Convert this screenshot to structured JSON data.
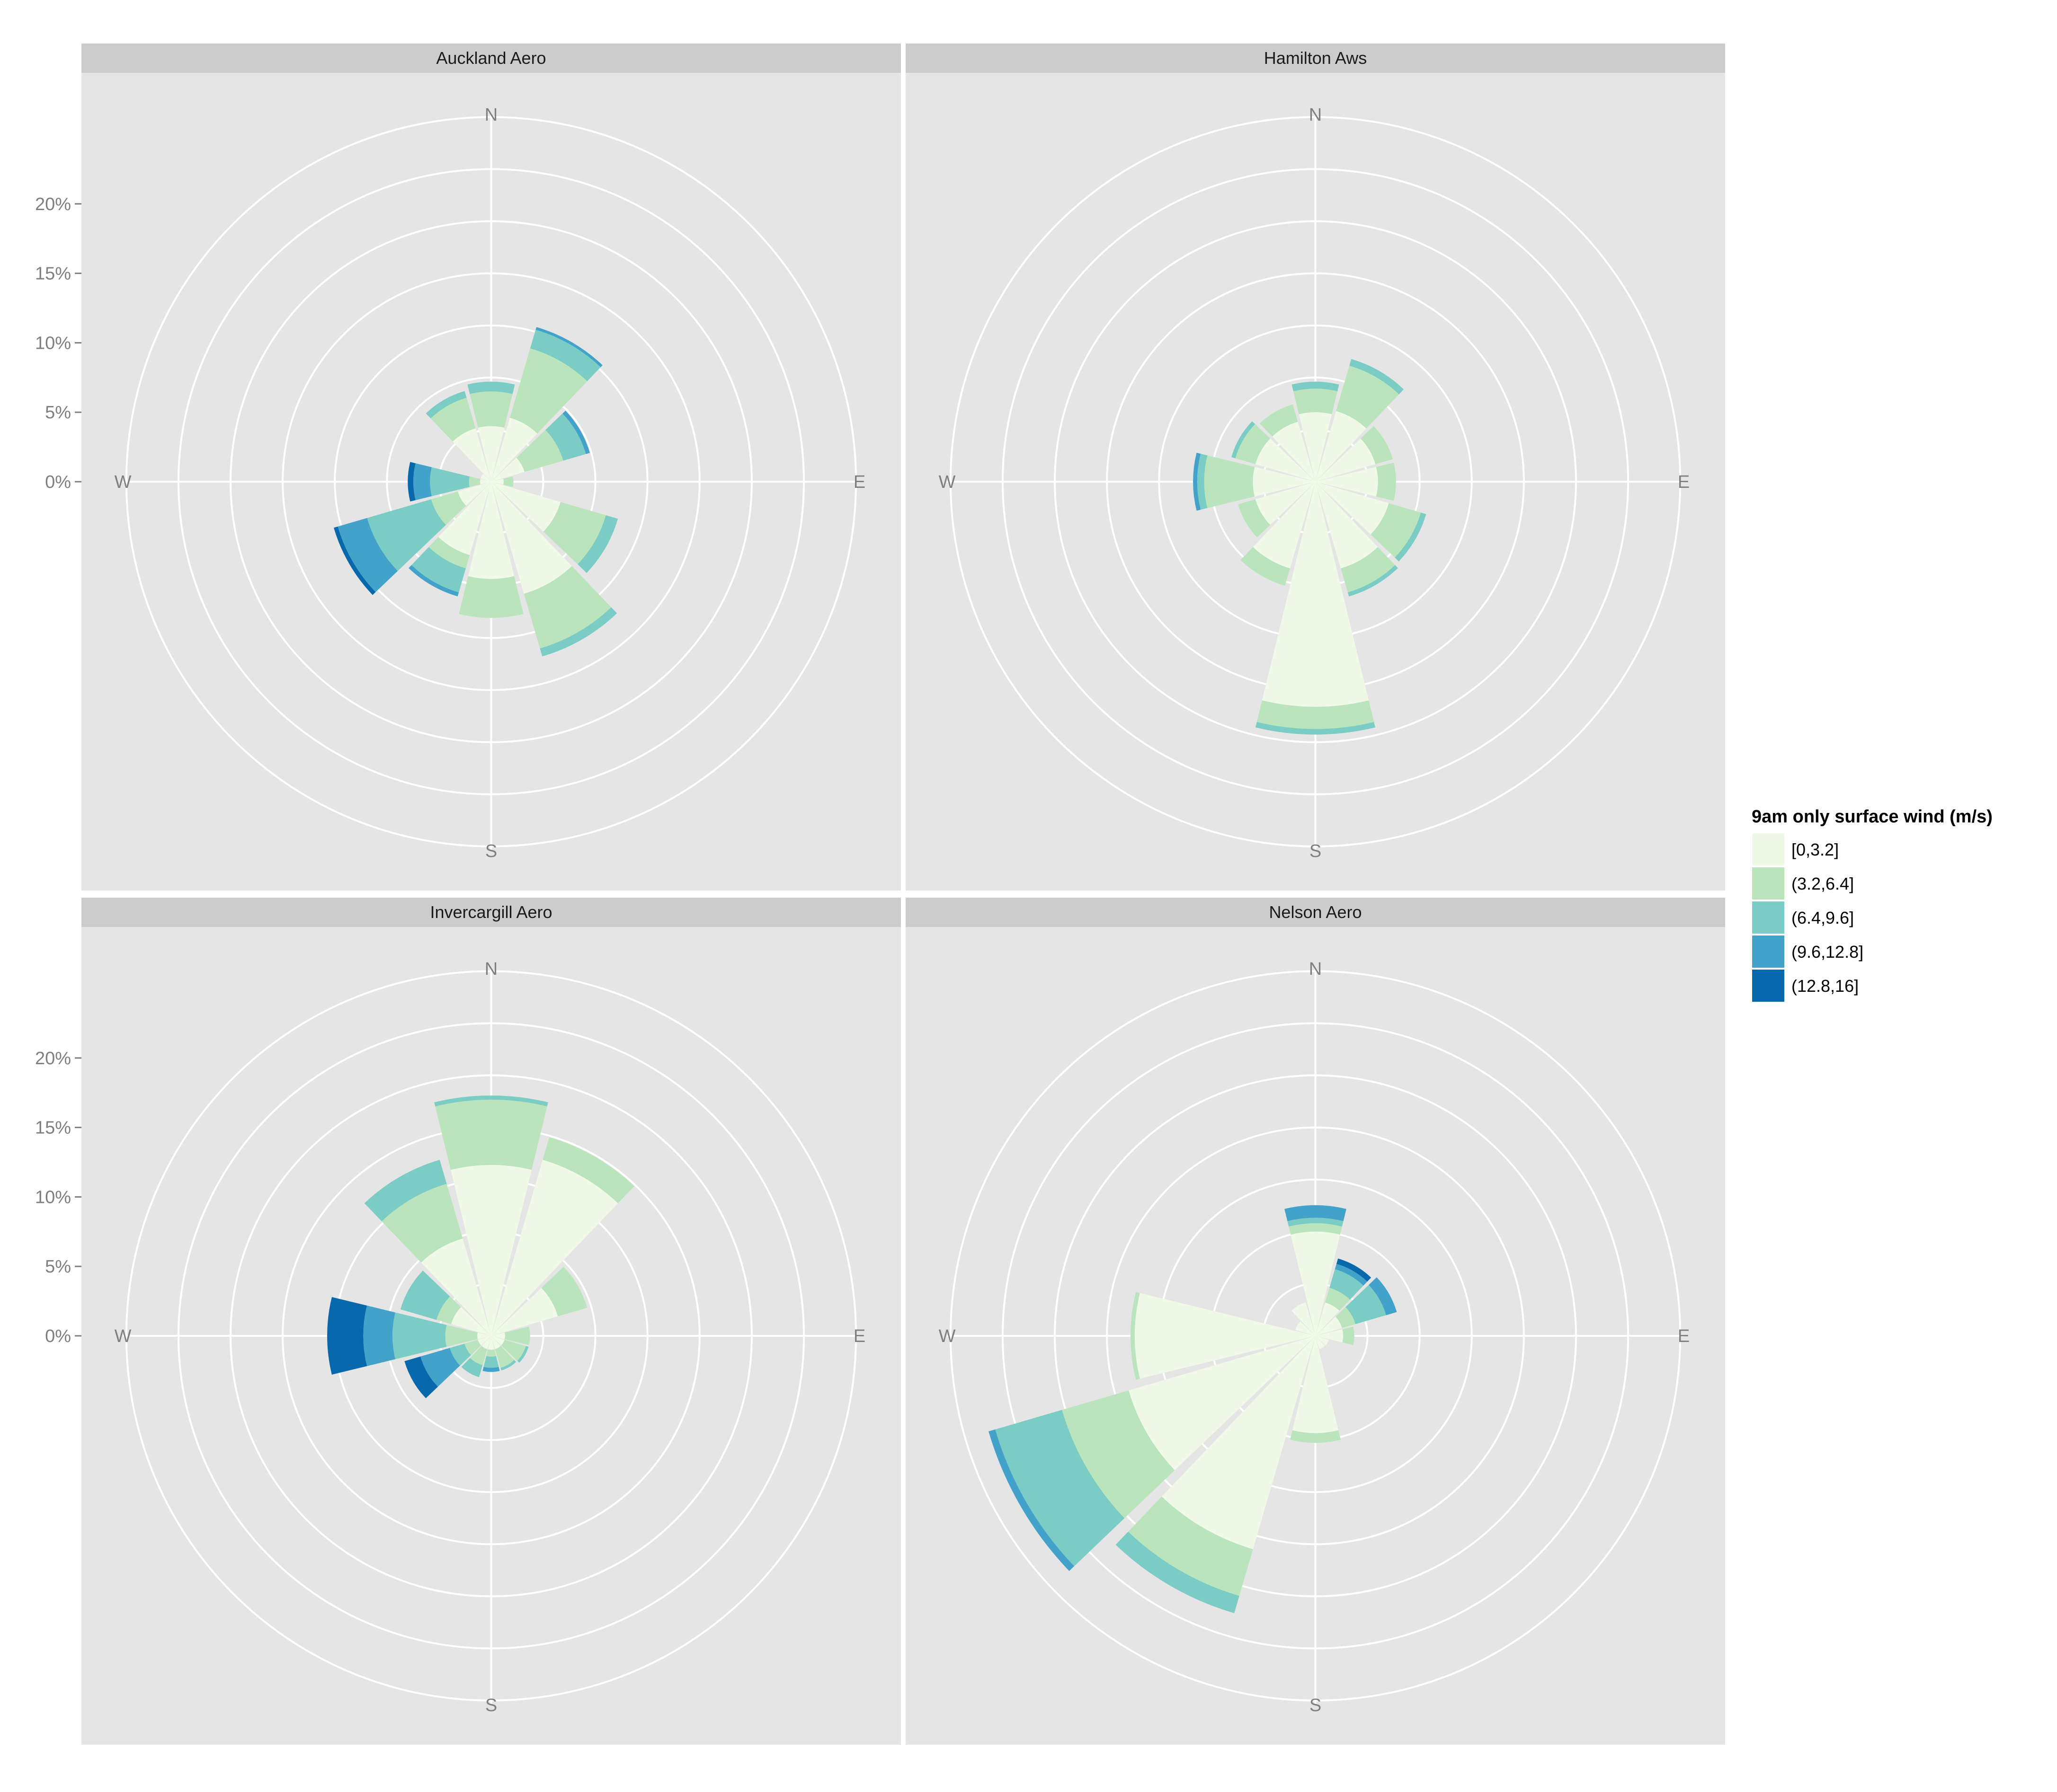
{
  "colors": {
    "panel_bg": "#e5e5e5",
    "strip_bg": "#cccccc",
    "grid": "#ffffff",
    "page_bg": "#ffffff",
    "bins": [
      "#f0f9e8",
      "#bae4bc",
      "#7bccc4",
      "#43a2ca",
      "#0868ac"
    ]
  },
  "legend": {
    "title": "9am only surface wind (m/s)",
    "labels": [
      "[0,3.2]",
      "(3.2,6.4]",
      "(6.4,9.6]",
      "(9.6,12.8]",
      "(12.8,16]"
    ]
  },
  "chart_data": {
    "type": "windrose",
    "facets": [
      "Auckland Aero",
      "Hamilton Aws",
      "Invercargill Aero",
      "Nelson Aero"
    ],
    "y_axis": {
      "tick_labels": [
        "0%",
        "5%",
        "10%",
        "15%",
        "20%"
      ],
      "tick_values": [
        0,
        5,
        10,
        15,
        20
      ],
      "range": [
        0,
        26.5
      ]
    },
    "compass_labels": [
      "N",
      "E",
      "S",
      "W"
    ],
    "direction_bin_width_deg": 30,
    "direction_centers_deg": [
      0,
      30,
      60,
      90,
      120,
      150,
      180,
      210,
      240,
      270,
      300,
      330
    ],
    "speed_bins": [
      "[0,3.2]",
      "(3.2,6.4]",
      "(6.4,9.6]",
      "(9.6,12.8]",
      "(12.8,16]"
    ],
    "panels": [
      {
        "name": "Auckland Aero",
        "cumulative": [
          [
            4.0,
            6.5,
            7.2,
            7.2,
            7.2
          ],
          [
            4.8,
            10.0,
            11.4,
            11.6,
            11.6
          ],
          [
            2.5,
            5.4,
            7.1,
            7.4,
            7.4
          ],
          [
            0.9,
            1.6,
            1.6,
            1.6,
            1.6
          ],
          [
            5.2,
            8.6,
            9.5,
            9.5,
            9.5
          ],
          [
            8.4,
            12.5,
            13.1,
            13.1,
            13.1
          ],
          [
            7.0,
            9.8,
            9.8,
            9.8,
            9.8
          ],
          [
            5.5,
            6.5,
            8.3,
            8.6,
            8.6
          ],
          [
            2.5,
            4.5,
            9.3,
            11.5,
            11.8
          ],
          [
            0.8,
            1.6,
            4.4,
            5.6,
            6.0
          ],
          [
            0.8,
            0.8,
            0.8,
            0.8,
            0.8
          ],
          [
            4.0,
            6.3,
            6.8,
            6.8,
            6.8
          ]
        ]
      },
      {
        "name": "Hamilton Aws",
        "cumulative": [
          [
            5.0,
            6.7,
            7.2,
            7.2,
            7.2
          ],
          [
            5.3,
            8.7,
            9.2,
            9.2,
            9.2
          ],
          [
            4.5,
            5.8,
            5.8,
            5.8,
            5.8
          ],
          [
            4.5,
            5.8,
            5.8,
            5.8,
            5.8
          ],
          [
            5.5,
            7.9,
            8.3,
            8.3,
            8.3
          ],
          [
            6.5,
            8.3,
            8.6,
            8.6,
            8.6
          ],
          [
            16.2,
            17.8,
            18.2,
            18.2,
            18.2
          ],
          [
            6.5,
            7.8,
            7.8,
            7.8,
            7.8
          ],
          [
            4.5,
            5.8,
            5.8,
            5.8,
            5.8
          ],
          [
            4.5,
            8.0,
            8.5,
            8.8,
            8.8
          ],
          [
            4.5,
            6.0,
            6.3,
            6.3,
            6.3
          ],
          [
            4.5,
            5.8,
            5.8,
            5.8,
            5.8
          ]
        ]
      },
      {
        "name": "Invercargill Aero",
        "cumulative": [
          [
            12.3,
            17.0,
            17.3,
            17.3,
            17.3
          ],
          [
            13.2,
            14.9,
            14.9,
            14.9,
            14.9
          ],
          [
            5.0,
            7.2,
            7.2,
            7.2,
            7.2
          ],
          [
            1.0,
            2.8,
            2.8,
            2.8,
            2.8
          ],
          [
            1.0,
            2.6,
            2.8,
            2.8,
            2.8
          ],
          [
            1.0,
            2.4,
            2.6,
            2.6,
            2.6
          ],
          [
            1.0,
            1.5,
            2.3,
            2.6,
            2.6
          ],
          [
            1.0,
            2.2,
            3.1,
            3.1,
            3.1
          ],
          [
            1.0,
            2.0,
            3.1,
            5.3,
            6.5
          ],
          [
            1.0,
            3.3,
            7.1,
            9.2,
            11.8
          ],
          [
            3.0,
            4.1,
            6.8,
            6.8,
            6.8
          ],
          [
            7.3,
            11.4,
            13.2,
            13.2,
            13.2
          ]
        ]
      },
      {
        "name": "Nelson Aero",
        "cumulative": [
          [
            7.5,
            8.1,
            8.5,
            9.4,
            9.4
          ],
          [
            2.5,
            3.6,
            5.0,
            5.4,
            5.8
          ],
          [
            2.0,
            3.0,
            5.3,
            6.1,
            6.1
          ],
          [
            2.0,
            2.8,
            2.8,
            2.8,
            2.8
          ],
          [
            1.0,
            1.0,
            1.0,
            1.0,
            1.0
          ],
          [
            1.0,
            1.0,
            1.0,
            1.0,
            1.0
          ],
          [
            7.0,
            7.7,
            7.7,
            7.7,
            7.7
          ],
          [
            16.0,
            19.5,
            20.8,
            20.8,
            20.8
          ],
          [
            14.0,
            19.0,
            24.0,
            24.5,
            24.5
          ],
          [
            13.0,
            13.3,
            13.3,
            13.3,
            13.3
          ],
          [
            1.5,
            1.5,
            1.5,
            1.5,
            1.5
          ],
          [
            2.5,
            2.5,
            2.5,
            2.5,
            2.5
          ]
        ]
      }
    ]
  }
}
